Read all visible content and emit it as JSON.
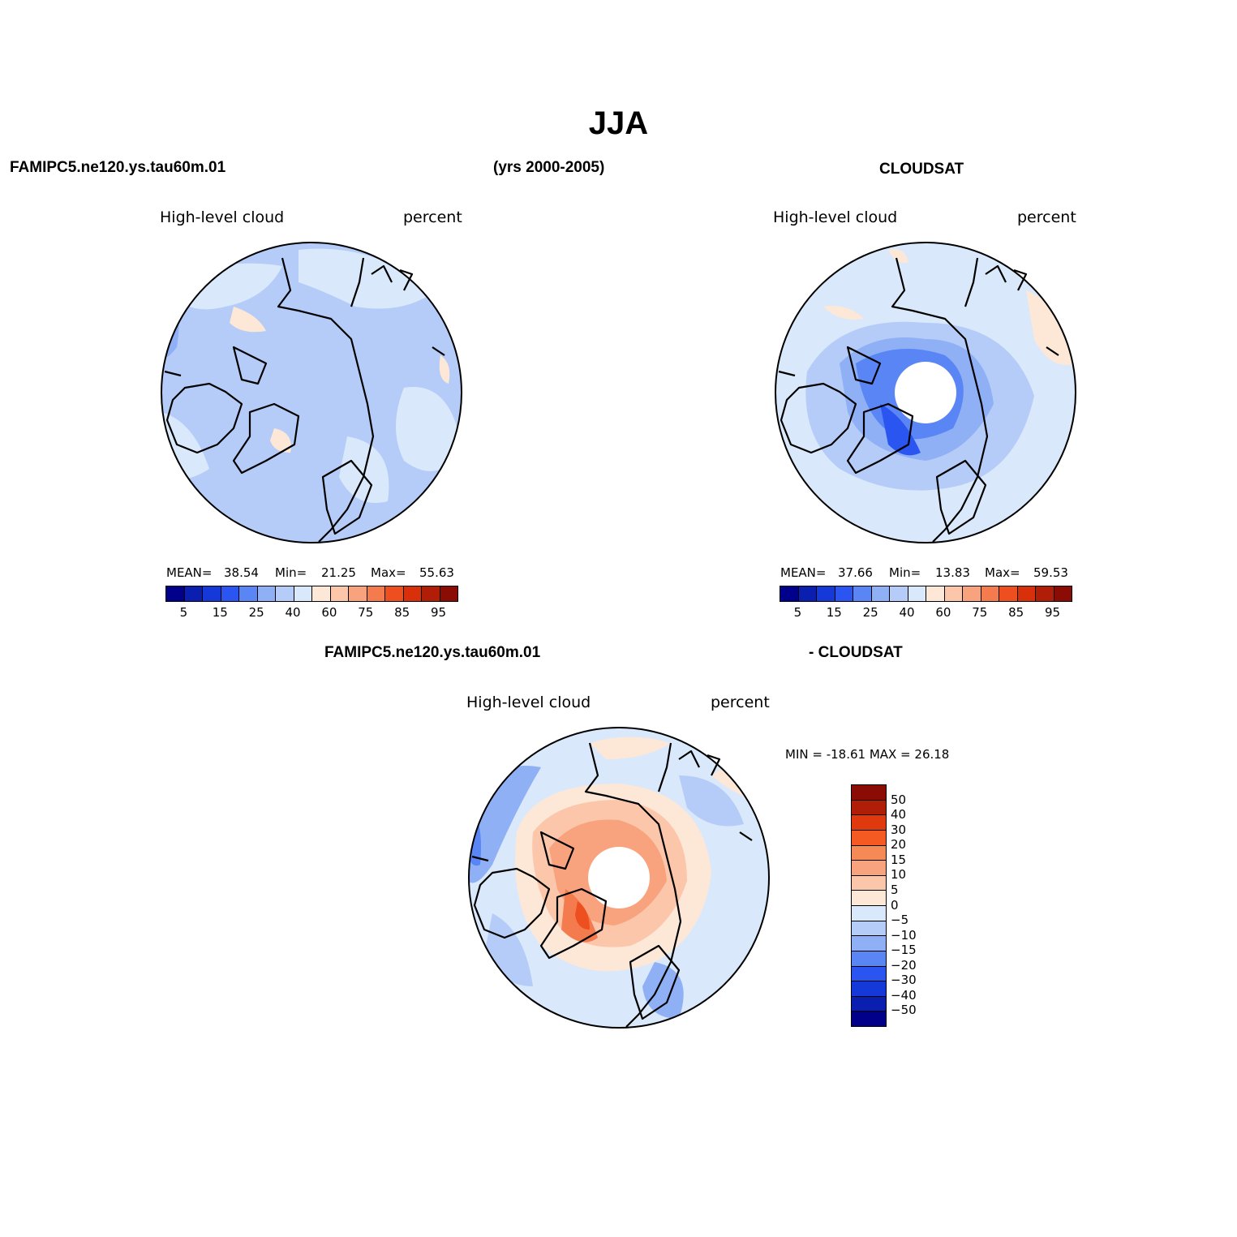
{
  "title": "JJA",
  "headers": {
    "model_top": "FAMIPC5.ne120.ys.tau60m.01",
    "years": "(yrs 2000-2005)",
    "obs_top": "CLOUDSAT",
    "model_bottom": "FAMIPC5.ne120.ys.tau60m.01",
    "diff_obs": "- CLOUDSAT"
  },
  "panels": [
    {
      "variable": "High-level cloud",
      "units": "percent",
      "mean_label": "MEAN=",
      "mean": "38.54",
      "min_label": "Min=",
      "min": "21.25",
      "max_label": "Max=",
      "max": "55.63"
    },
    {
      "variable": "High-level cloud",
      "units": "percent",
      "mean_label": "MEAN=",
      "mean": "37.66",
      "min_label": "Min=",
      "min": "13.83",
      "max_label": "Max=",
      "max": "59.53"
    },
    {
      "variable": "High-level cloud",
      "units": "percent",
      "minmax": "MIN = -18.61 MAX =  26.18"
    }
  ],
  "colorbar_abs": {
    "colors": [
      "#00008b",
      "#0a1fb0",
      "#1538d8",
      "#2a55f0",
      "#5a85f5",
      "#8fb0f5",
      "#b5ccf8",
      "#d9e8fb",
      "#fde8d8",
      "#fbc6aa",
      "#f8a37e",
      "#f47b4e",
      "#ee4f1e",
      "#d8300a",
      "#b01e08",
      "#8b0b05"
    ],
    "ticks": [
      "5",
      "15",
      "25",
      "40",
      "60",
      "75",
      "85",
      "95"
    ]
  },
  "colorbar_diff": {
    "colors": [
      "#8b0b05",
      "#b01e08",
      "#e0390e",
      "#f45a22",
      "#f58a56",
      "#f8a37e",
      "#fbc6aa",
      "#fde8d8",
      "#d9e8fb",
      "#b5ccf8",
      "#8fb0f5",
      "#5a85f5",
      "#2a55f0",
      "#1538d8",
      "#0a1fb0",
      "#00008b"
    ],
    "ticks": [
      "50",
      "40",
      "30",
      "20",
      "15",
      "10",
      "5",
      "0",
      "-5",
      "-10",
      "-15",
      "-20",
      "-30",
      "-40",
      "-50"
    ]
  }
}
